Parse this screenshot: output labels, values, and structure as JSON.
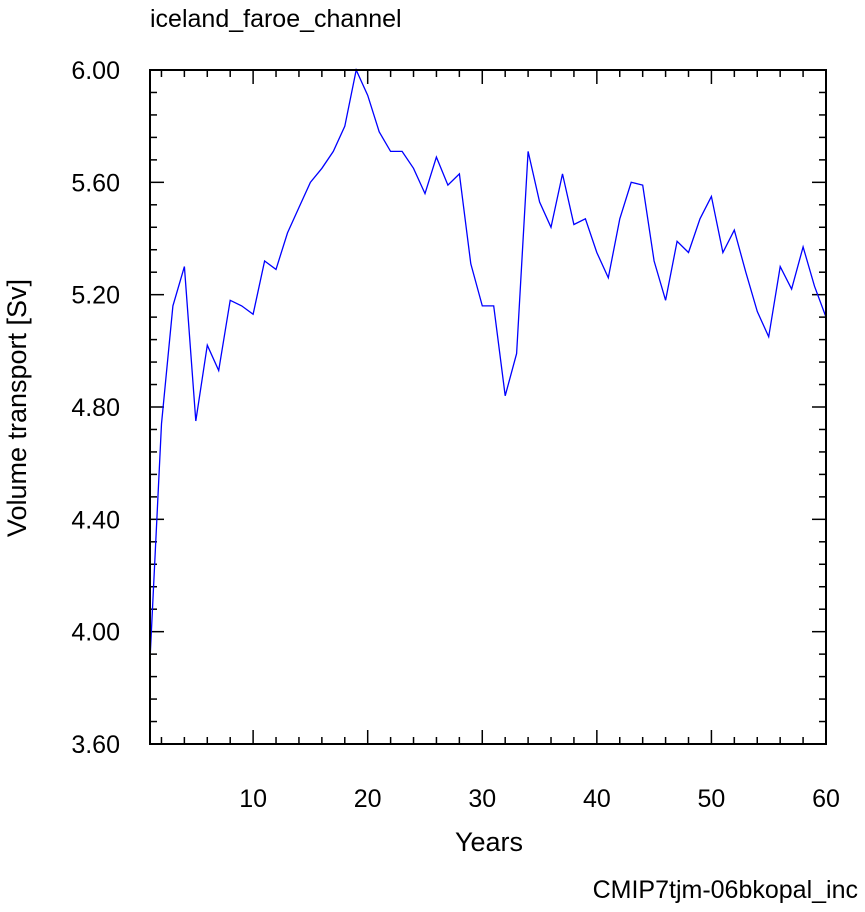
{
  "chart_data": {
    "type": "line",
    "title": "iceland_faroe_channel",
    "xlabel": "Years",
    "ylabel": "Volume transport [Sv]",
    "annotation": "CMIP7tjm-06bkopal_inc",
    "annotation_color": "#0000ff",
    "line_color": "#0000ff",
    "xlim": [
      1,
      60
    ],
    "ylim": [
      3.6,
      6.0
    ],
    "xticks": [
      10,
      20,
      30,
      40,
      50,
      60
    ],
    "yticks": [
      3.6,
      4.0,
      4.4,
      4.8,
      5.2,
      5.6,
      6.0
    ],
    "ytick_labels": [
      "3.60",
      "4.00",
      "4.40",
      "4.80",
      "5.20",
      "5.60",
      "6.00"
    ],
    "grid": false,
    "series": [
      {
        "x": [
          1,
          2,
          3,
          4,
          5,
          6,
          7,
          8,
          9,
          10,
          11,
          12,
          13,
          14,
          15,
          16,
          17,
          18,
          19,
          20,
          21,
          22,
          23,
          24,
          25,
          26,
          27,
          28,
          29,
          30,
          31,
          32,
          33,
          34,
          35,
          36,
          37,
          38,
          39,
          40,
          41,
          42,
          43,
          44,
          45,
          46,
          47,
          48,
          49,
          50,
          51,
          52,
          53,
          54,
          55,
          56,
          57,
          58,
          59,
          60
        ],
        "values": [
          3.9,
          4.74,
          5.16,
          5.3,
          4.75,
          5.02,
          4.93,
          5.18,
          5.16,
          5.13,
          5.32,
          5.29,
          5.42,
          5.51,
          5.6,
          5.65,
          5.71,
          5.8,
          6.0,
          5.91,
          5.78,
          5.71,
          5.71,
          5.65,
          5.56,
          5.69,
          5.59,
          5.63,
          5.31,
          5.16,
          5.16,
          4.84,
          4.99,
          5.71,
          5.53,
          5.44,
          5.63,
          5.45,
          5.47,
          5.35,
          5.26,
          5.47,
          5.6,
          5.59,
          5.32,
          5.18,
          5.39,
          5.35,
          5.47,
          5.55,
          5.35,
          5.43,
          5.28,
          5.14,
          5.05,
          5.3,
          5.22,
          5.37,
          5.23,
          5.12
        ]
      }
    ]
  }
}
